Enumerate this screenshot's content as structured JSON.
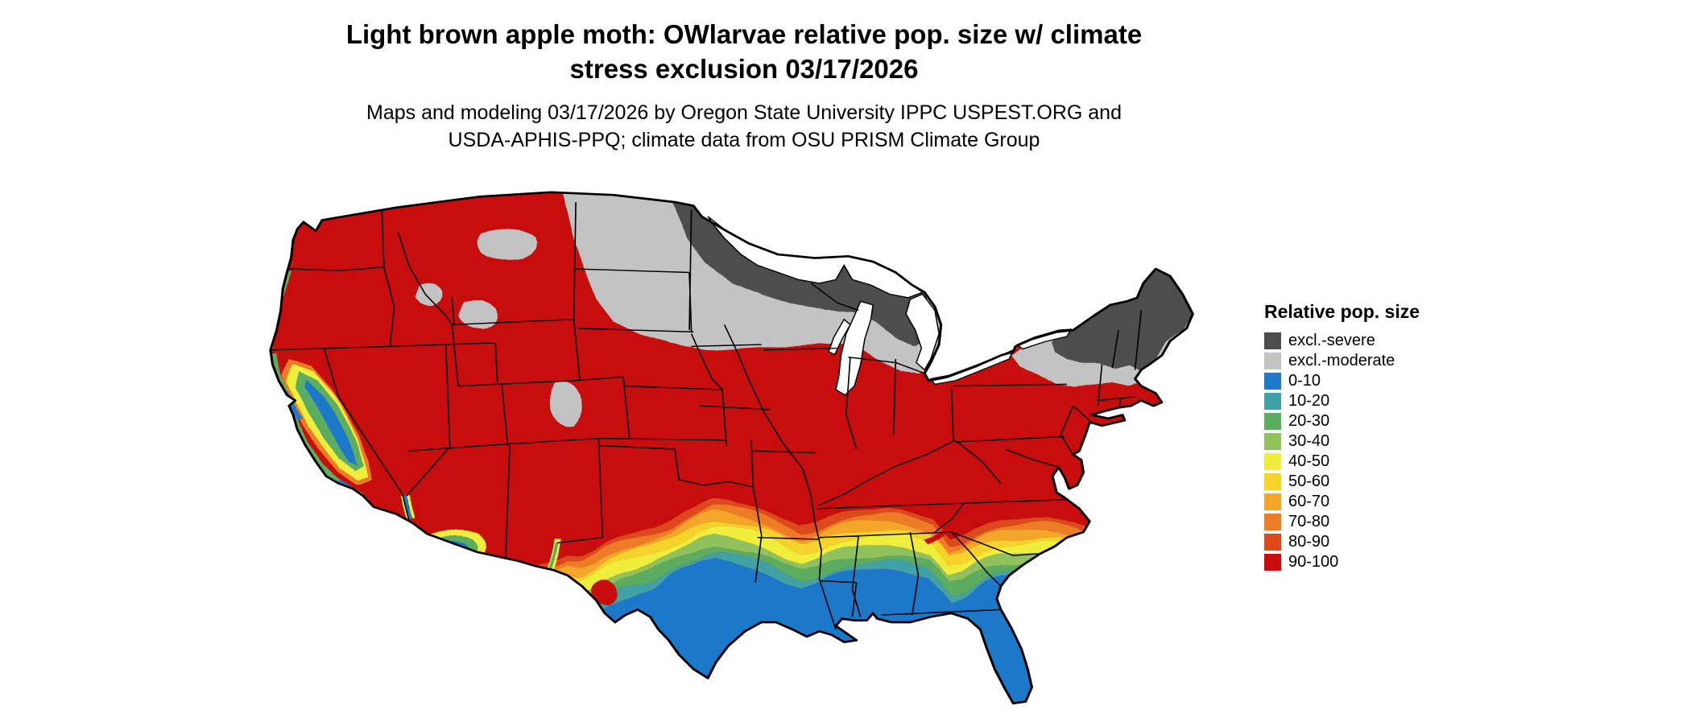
{
  "title": {
    "line1": "Light brown apple moth: OWlarvae relative pop. size w/ climate",
    "line2": "stress exclusion 03/17/2026"
  },
  "subtitle": {
    "line1": "Maps and modeling 03/17/2026 by Oregon State University IPPC USPEST.ORG and",
    "line2": "USDA-APHIS-PPQ; climate data from OSU PRISM Climate Group"
  },
  "legend": {
    "title": "Relative pop. size",
    "entries": [
      {
        "label": "excl.-severe",
        "color": "#4D4D4D"
      },
      {
        "label": "excl.-moderate",
        "color": "#C3C3C3"
      },
      {
        "label": "0-10",
        "color": "#1F78C8"
      },
      {
        "label": "10-20",
        "color": "#3FA2A6"
      },
      {
        "label": "20-30",
        "color": "#5BAD60"
      },
      {
        "label": "30-40",
        "color": "#8FC25B"
      },
      {
        "label": "40-50",
        "color": "#F0EE3D"
      },
      {
        "label": "50-60",
        "color": "#F6D32B"
      },
      {
        "label": "60-70",
        "color": "#F4A62A"
      },
      {
        "label": "70-80",
        "color": "#EC7C25"
      },
      {
        "label": "80-90",
        "color": "#DC4A1C"
      },
      {
        "label": "90-100",
        "color": "#C80D0D"
      }
    ]
  },
  "map": {
    "type": "choropleth-conus",
    "water_color": "#FFFFFF",
    "pattern": [
      {
        "area": "Northern tier: northern MN/WI/MI, eastern ND, Adirondacks, northern New England",
        "category": "excl.-severe"
      },
      {
        "area": "Band south of severe zone: Dakotas, southern MN/WI/MI, central NY, northern PA, mountain-west high elevations",
        "category": "excl.-moderate"
      },
      {
        "area": "Most of the West, Plains, Midwest and mid-Atlantic",
        "category": "90-100"
      },
      {
        "area": "Transition band: central TX and OK, AR, TN, northern AL/GA, piedmont Carolinas, CA valley fringes, southern NM/AZ",
        "category": "10-90 gradient"
      },
      {
        "area": "Southern tier: southern TX, Gulf coast, FL, southeastern coastal plain, CA Central Valley and coast, southwest AZ",
        "category": "0-10"
      }
    ]
  }
}
